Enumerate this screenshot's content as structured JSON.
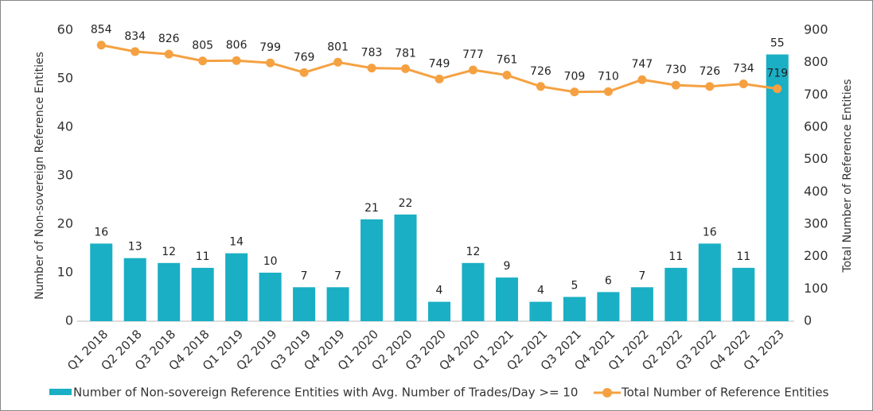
{
  "chart_data": {
    "type": "bar",
    "categories": [
      "Q1 2018",
      "Q2 2018",
      "Q3 2018",
      "Q4 2018",
      "Q1 2019",
      "Q2 2019",
      "Q3 2019",
      "Q4 2019",
      "Q1 2020",
      "Q2 2020",
      "Q3 2020",
      "Q4 2020",
      "Q1 2021",
      "Q2 2021",
      "Q3 2021",
      "Q4 2021",
      "Q1 2022",
      "Q2 2022",
      "Q3 2022",
      "Q4 2022",
      "Q1 2023"
    ],
    "series": [
      {
        "name": "Number of Non-sovereign Reference Entities with Avg. Number of Trades/Day >= 10",
        "type": "bar",
        "color": "#1aafc4",
        "values": [
          16,
          13,
          12,
          11,
          14,
          10,
          7,
          7,
          21,
          22,
          4,
          12,
          9,
          4,
          5,
          6,
          7,
          11,
          16,
          11,
          55
        ]
      },
      {
        "name": "Total Number of Reference Entities",
        "type": "line",
        "axis": "y2",
        "color": "#f5a142",
        "values": [
          854,
          834,
          826,
          805,
          806,
          799,
          769,
          801,
          783,
          781,
          749,
          777,
          761,
          726,
          709,
          710,
          747,
          730,
          726,
          734,
          719
        ]
      }
    ],
    "ylabel": "Number of Non-sovereign Reference Entities",
    "y2label": "Total Number of Reference Entities",
    "ylim": [
      0,
      60
    ],
    "yticks": [
      0,
      10,
      20,
      30,
      40,
      50,
      60
    ],
    "y2lim": [
      0,
      900
    ],
    "y2ticks": [
      0,
      100,
      200,
      300,
      400,
      500,
      600,
      700,
      800,
      900
    ],
    "grid": false,
    "legend": "bottom"
  }
}
